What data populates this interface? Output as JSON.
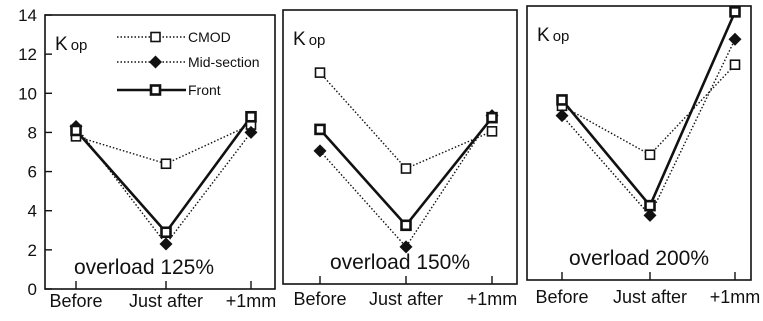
{
  "chart_data": [
    {
      "type": "line",
      "label": "Kop",
      "annotation": "overload 125%",
      "categories": [
        "Before",
        "Just after",
        "+1mm"
      ],
      "ylim": [
        0,
        14
      ],
      "yticks": [
        0,
        2,
        4,
        6,
        8,
        10,
        12,
        14
      ],
      "legend": [
        "CMOD",
        "Mid-section",
        "Front"
      ],
      "series": [
        {
          "name": "CMOD",
          "values": [
            7.8,
            6.4,
            8.4
          ],
          "style": "dotted",
          "marker": "open-square"
        },
        {
          "name": "Mid-section",
          "values": [
            8.3,
            2.3,
            8.0
          ],
          "style": "dotted",
          "marker": "diamond"
        },
        {
          "name": "Front",
          "values": [
            8.1,
            2.9,
            8.8
          ],
          "style": "solid",
          "marker": "square"
        }
      ]
    },
    {
      "type": "line",
      "label": "Kop",
      "annotation": "overload 150%",
      "categories": [
        "Before",
        "Just after",
        "+1mm"
      ],
      "ylim": [
        0,
        14
      ],
      "series": [
        {
          "name": "CMOD",
          "values": [
            10.8,
            5.9,
            7.8
          ],
          "style": "dotted",
          "marker": "open-square"
        },
        {
          "name": "Mid-section",
          "values": [
            6.8,
            1.9,
            8.6
          ],
          "style": "dotted",
          "marker": "diamond"
        },
        {
          "name": "Front",
          "values": [
            7.9,
            3.0,
            8.5
          ],
          "style": "solid",
          "marker": "square"
        }
      ]
    },
    {
      "type": "line",
      "label": "Kop",
      "annotation": "overload 200%",
      "categories": [
        "Before",
        "Just after",
        "+1mm"
      ],
      "ylim": [
        0,
        14
      ],
      "series": [
        {
          "name": "CMOD",
          "values": [
            8.9,
            6.4,
            11.0
          ],
          "style": "dotted",
          "marker": "open-square"
        },
        {
          "name": "Mid-section",
          "values": [
            8.4,
            3.3,
            12.3
          ],
          "style": "dotted",
          "marker": "diamond"
        },
        {
          "name": "Front",
          "values": [
            9.2,
            3.8,
            13.7
          ],
          "style": "solid",
          "marker": "square"
        }
      ]
    }
  ]
}
